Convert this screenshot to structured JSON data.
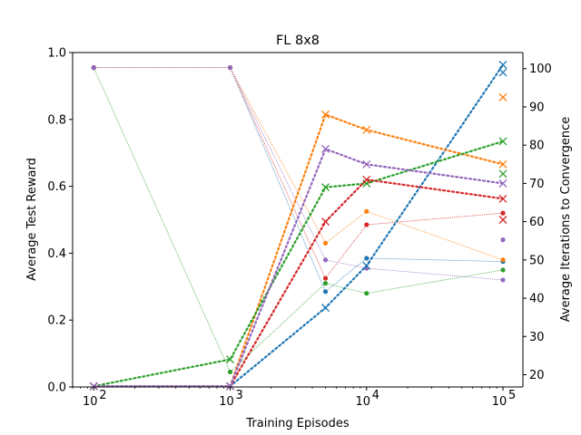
{
  "chart_data": {
    "type": "line",
    "title": "FL 8x8",
    "xlabel": "Training Episodes",
    "ylabel_left": "Average Test Reward",
    "ylabel_right": "Average Iterations to Convergence",
    "x_scale": "log",
    "xlim": [
      70,
      140000
    ],
    "ylim_left": [
      0.0,
      1.0
    ],
    "ylim_right": [
      16.8,
      104.2
    ],
    "x_ticks": [
      {
        "value": 100,
        "base": "10",
        "exp": "2"
      },
      {
        "value": 1000,
        "base": "10",
        "exp": "3"
      },
      {
        "value": 10000,
        "base": "10",
        "exp": "4"
      },
      {
        "value": 100000,
        "base": "10",
        "exp": "5"
      }
    ],
    "y_ticks_left": [
      "0.0",
      "0.2",
      "0.4",
      "0.6",
      "0.8",
      "1.0"
    ],
    "y_ticks_right": [
      "20",
      "30",
      "40",
      "50",
      "60",
      "70",
      "80",
      "90",
      "100"
    ],
    "grid": false,
    "colors": [
      "#1f77b4",
      "#ff7f0e",
      "#2ca02c",
      "#d62728",
      "#9467bd"
    ],
    "reward_series": [
      {
        "color": "#1f77b4",
        "x": [
          100,
          1000,
          5000,
          10000,
          100000
        ],
        "y": [
          0.955,
          0.955,
          0.285,
          0.385,
          0.375
        ]
      },
      {
        "color": "#ff7f0e",
        "x": [
          100,
          1000,
          5000,
          10000,
          100000
        ],
        "y": [
          0.955,
          0.955,
          0.43,
          0.525,
          0.38
        ]
      },
      {
        "color": "#2ca02c",
        "x": [
          100,
          1000,
          5000,
          10000,
          100000
        ],
        "y": [
          0.955,
          0.045,
          0.31,
          0.28,
          0.35
        ]
      },
      {
        "color": "#d62728",
        "x": [
          100,
          1000,
          5000,
          10000,
          100000
        ],
        "y": [
          0.955,
          0.955,
          0.325,
          0.485,
          0.52
        ]
      },
      {
        "color": "#9467bd",
        "x": [
          100,
          1000,
          5000,
          10000,
          100000
        ],
        "y": [
          0.955,
          0.955,
          0.38,
          0.355,
          0.32
        ]
      }
    ],
    "iteration_series": [
      {
        "color": "#1f77b4",
        "x": [
          100,
          1000,
          5000,
          10000,
          100000
        ],
        "y": [
          17,
          17,
          37.5,
          48.5,
          101
        ]
      },
      {
        "color": "#ff7f0e",
        "x": [
          100,
          1000,
          5000,
          10000,
          100000
        ],
        "y": [
          17,
          17,
          88,
          84,
          75
        ]
      },
      {
        "color": "#2ca02c",
        "x": [
          100,
          1000,
          5000,
          10000,
          100000
        ],
        "y": [
          17,
          24,
          69,
          70,
          81
        ]
      },
      {
        "color": "#d62728",
        "x": [
          100,
          1000,
          5000,
          10000,
          100000
        ],
        "y": [
          17,
          17,
          60,
          71,
          66
        ]
      },
      {
        "color": "#9467bd",
        "x": [
          100,
          1000,
          5000,
          10000,
          100000
        ],
        "y": [
          17,
          17,
          79,
          75,
          70
        ]
      }
    ],
    "extra_iteration_points": [
      {
        "color": "#1f77b4",
        "x": 100000,
        "y": 99
      },
      {
        "color": "#ff7f0e",
        "x": 100000,
        "y": 92.5
      },
      {
        "color": "#2ca02c",
        "x": 100000,
        "y": 72.5
      },
      {
        "color": "#d62728",
        "x": 100000,
        "y": 60.5
      }
    ],
    "extra_reward_points": [
      {
        "color": "#9467bd",
        "x": 100000,
        "y": 0.44
      }
    ]
  }
}
